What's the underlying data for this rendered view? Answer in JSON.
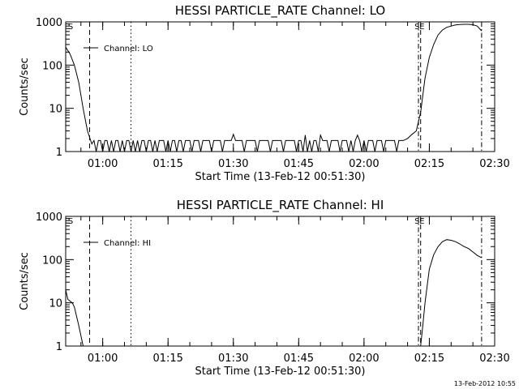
{
  "stamp": "13-Feb-2012 10:55",
  "chart_data": [
    {
      "type": "line",
      "title": "HESSI PARTICLE_RATE Channel: LO",
      "xlabel": "Start Time (13-Feb-12 00:51:30)",
      "ylabel": "Counts/sec",
      "yscale": "log",
      "ylim": [
        1,
        1000
      ],
      "xlim": [
        "00:51:30",
        "02:30:00"
      ],
      "xticks": [
        "01:00",
        "01:15",
        "01:30",
        "01:45",
        "02:00",
        "02:15",
        "02:30"
      ],
      "yticks": [
        "1",
        "10",
        "100",
        "1000"
      ],
      "legend": {
        "label": "Channel: LO",
        "placement": "top-left"
      },
      "markers": [
        "S",
        "S",
        "E"
      ],
      "vlines": [
        {
          "x": "00:57:00",
          "style": "dashed"
        },
        {
          "x": "01:06:30",
          "style": "dotted"
        },
        {
          "x": "02:12:30",
          "style": "dash-dot"
        },
        {
          "x": "02:13:00",
          "style": "dashed"
        },
        {
          "x": "02:27:00",
          "style": "dash-dot"
        }
      ],
      "series": [
        {
          "points": [
            [
              "00:51:30",
              260
            ],
            [
              "00:52:30",
              180
            ],
            [
              "00:53:30",
              100
            ],
            [
              "00:54:30",
              40
            ],
            [
              "00:55:30",
              10
            ],
            [
              "00:56:30",
              3
            ],
            [
              "00:57:30",
              1.5
            ],
            [
              "00:58:00",
              1.8
            ],
            [
              "00:58:30",
              1.0
            ],
            [
              "00:59:00",
              1.8
            ],
            [
              "00:59:30",
              1.8
            ],
            [
              "01:00:00",
              1.0
            ],
            [
              "01:00:30",
              1.8
            ],
            [
              "01:01:00",
              1.8
            ],
            [
              "01:01:30",
              1.0
            ],
            [
              "01:02:00",
              1.8
            ],
            [
              "01:02:30",
              1.0
            ],
            [
              "01:03:00",
              1.8
            ],
            [
              "01:03:30",
              1.8
            ],
            [
              "01:04:00",
              1.0
            ],
            [
              "01:04:30",
              1.8
            ],
            [
              "01:05:00",
              1.0
            ],
            [
              "01:05:30",
              1.8
            ],
            [
              "01:06:00",
              1.8
            ],
            [
              "01:06:30",
              1.0
            ],
            [
              "01:07:00",
              1.8
            ],
            [
              "01:07:30",
              1.0
            ],
            [
              "01:08:00",
              1.8
            ],
            [
              "01:08:30",
              1.0
            ],
            [
              "01:09:00",
              1.8
            ],
            [
              "01:09:30",
              1.8
            ],
            [
              "01:10:00",
              1.0
            ],
            [
              "01:10:30",
              1.8
            ],
            [
              "01:11:00",
              1.8
            ],
            [
              "01:11:30",
              1.0
            ],
            [
              "01:12:00",
              1.8
            ],
            [
              "01:12:30",
              1.0
            ],
            [
              "01:13:00",
              1.8
            ],
            [
              "01:13:30",
              1.8
            ],
            [
              "01:14:00",
              1.8
            ],
            [
              "01:14:30",
              1.0
            ],
            [
              "01:15:00",
              1.8
            ],
            [
              "01:15:30",
              1.0
            ],
            [
              "01:16:00",
              1.8
            ],
            [
              "01:16:30",
              1.8
            ],
            [
              "01:17:00",
              1.0
            ],
            [
              "01:17:30",
              1.8
            ],
            [
              "01:18:00",
              1.8
            ],
            [
              "01:18:30",
              1.0
            ],
            [
              "01:19:00",
              1.8
            ],
            [
              "01:20:00",
              1.8
            ],
            [
              "01:20:30",
              1.0
            ],
            [
              "01:21:00",
              1.8
            ],
            [
              "01:22:00",
              1.8
            ],
            [
              "01:22:30",
              1.0
            ],
            [
              "01:23:00",
              1.8
            ],
            [
              "01:24:30",
              1.8
            ],
            [
              "01:25:00",
              1.0
            ],
            [
              "01:25:30",
              1.8
            ],
            [
              "01:27:00",
              1.8
            ],
            [
              "01:27:30",
              1.0
            ],
            [
              "01:28:00",
              1.8
            ],
            [
              "01:29:30",
              1.8
            ],
            [
              "01:30:00",
              2.5
            ],
            [
              "01:30:30",
              1.8
            ],
            [
              "01:32:00",
              1.8
            ],
            [
              "01:32:30",
              1.0
            ],
            [
              "01:33:00",
              1.8
            ],
            [
              "01:35:00",
              1.8
            ],
            [
              "01:35:30",
              1.0
            ],
            [
              "01:36:00",
              1.8
            ],
            [
              "01:38:00",
              1.8
            ],
            [
              "01:38:30",
              1.0
            ],
            [
              "01:39:00",
              1.8
            ],
            [
              "01:41:00",
              1.8
            ],
            [
              "01:41:30",
              1.0
            ],
            [
              "01:42:00",
              1.8
            ],
            [
              "01:44:00",
              1.8
            ],
            [
              "01:44:30",
              1.0
            ],
            [
              "01:45:00",
              1.8
            ],
            [
              "01:45:30",
              1.8
            ],
            [
              "01:46:00",
              1.0
            ],
            [
              "01:46:30",
              2.4
            ],
            [
              "01:47:00",
              1.0
            ],
            [
              "01:47:30",
              1.8
            ],
            [
              "01:48:00",
              1.0
            ],
            [
              "01:48:30",
              1.8
            ],
            [
              "01:49:00",
              1.8
            ],
            [
              "01:49:30",
              1.0
            ],
            [
              "01:50:00",
              2.4
            ],
            [
              "01:50:30",
              1.8
            ],
            [
              "01:51:30",
              1.8
            ],
            [
              "01:52:00",
              1.0
            ],
            [
              "01:52:30",
              1.8
            ],
            [
              "01:54:00",
              1.8
            ],
            [
              "01:54:30",
              1.0
            ],
            [
              "01:55:00",
              1.8
            ],
            [
              "01:56:00",
              1.8
            ],
            [
              "01:56:30",
              1.0
            ],
            [
              "01:57:00",
              1.8
            ],
            [
              "01:57:30",
              1.0
            ],
            [
              "01:58:00",
              1.8
            ],
            [
              "01:58:30",
              2.4
            ],
            [
              "01:59:00",
              1.8
            ],
            [
              "01:59:30",
              1.0
            ],
            [
              "02:00:00",
              1.8
            ],
            [
              "02:00:30",
              1.0
            ],
            [
              "02:01:00",
              1.8
            ],
            [
              "02:02:00",
              1.8
            ],
            [
              "02:02:30",
              1.0
            ],
            [
              "02:03:00",
              1.8
            ],
            [
              "02:04:00",
              1.8
            ],
            [
              "02:04:30",
              1.0
            ],
            [
              "02:05:00",
              1.8
            ],
            [
              "02:06:00",
              1.8
            ],
            [
              "02:07:00",
              1.8
            ],
            [
              "02:07:30",
              1.0
            ],
            [
              "02:08:00",
              1.8
            ],
            [
              "02:09:00",
              1.8
            ],
            [
              "02:10:00",
              2.0
            ],
            [
              "02:11:00",
              2.5
            ],
            [
              "02:12:00",
              3.0
            ],
            [
              "02:13:00",
              8
            ],
            [
              "02:13:30",
              20
            ],
            [
              "02:14:00",
              50
            ],
            [
              "02:15:00",
              150
            ],
            [
              "02:16:00",
              300
            ],
            [
              "02:17:00",
              500
            ],
            [
              "02:18:00",
              650
            ],
            [
              "02:19:00",
              750
            ],
            [
              "02:20:00",
              800
            ],
            [
              "02:21:00",
              850
            ],
            [
              "02:22:00",
              870
            ],
            [
              "02:23:00",
              880
            ],
            [
              "02:24:00",
              880
            ],
            [
              "02:25:00",
              860
            ],
            [
              "02:26:00",
              800
            ],
            [
              "02:27:00",
              620
            ]
          ]
        }
      ]
    },
    {
      "type": "line",
      "title": "HESSI PARTICLE_RATE Channel: HI",
      "xlabel": "Start Time (13-Feb-12 00:51:30)",
      "ylabel": "Counts/sec",
      "yscale": "log",
      "ylim": [
        1,
        1000
      ],
      "xlim": [
        "00:51:30",
        "02:30:00"
      ],
      "xticks": [
        "01:00",
        "01:15",
        "01:30",
        "01:45",
        "02:00",
        "02:15",
        "02:30"
      ],
      "yticks": [
        "1",
        "10",
        "100",
        "1000"
      ],
      "legend": {
        "label": "Channel: HI",
        "placement": "top-left"
      },
      "markers": [
        "S",
        "S",
        "E"
      ],
      "vlines": [
        {
          "x": "00:57:00",
          "style": "dashed"
        },
        {
          "x": "01:06:30",
          "style": "dotted"
        },
        {
          "x": "02:12:30",
          "style": "dash-dot"
        },
        {
          "x": "02:13:00",
          "style": "dashed"
        },
        {
          "x": "02:27:00",
          "style": "dash-dot"
        }
      ],
      "series": [
        {
          "points": [
            [
              "00:51:30",
              20
            ],
            [
              "00:52:00",
              12
            ],
            [
              "00:53:00",
              10
            ],
            [
              "00:53:30",
              8
            ],
            [
              "00:54:30",
              3
            ],
            [
              "00:55:30",
              1
            ]
          ]
        },
        {
          "points": [
            [
              "02:13:00",
              1
            ],
            [
              "02:13:30",
              3
            ],
            [
              "02:14:00",
              10
            ],
            [
              "02:14:30",
              25
            ],
            [
              "02:15:00",
              60
            ],
            [
              "02:16:00",
              130
            ],
            [
              "02:17:00",
              200
            ],
            [
              "02:18:00",
              260
            ],
            [
              "02:19:00",
              290
            ],
            [
              "02:20:00",
              280
            ],
            [
              "02:21:00",
              260
            ],
            [
              "02:22:00",
              230
            ],
            [
              "02:23:00",
              200
            ],
            [
              "02:24:00",
              180
            ],
            [
              "02:25:00",
              150
            ],
            [
              "02:26:00",
              125
            ],
            [
              "02:27:00",
              110
            ]
          ]
        }
      ]
    }
  ]
}
